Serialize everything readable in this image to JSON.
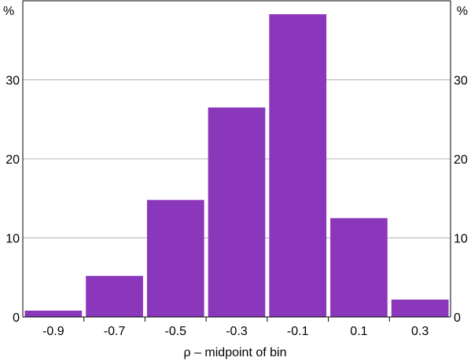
{
  "chart_data": {
    "type": "bar",
    "title": "",
    "xlabel": "ρ – midpoint of bin",
    "ylabel_left": "%",
    "ylabel_right": "%",
    "categories": [
      "-0.9",
      "-0.7",
      "-0.5",
      "-0.3",
      "-0.1",
      "0.1",
      "0.3"
    ],
    "values": [
      0.8,
      5.2,
      14.8,
      26.5,
      38.3,
      12.5,
      2.2
    ],
    "ylim": [
      0,
      40
    ],
    "yticks": [
      0,
      10,
      20,
      30
    ],
    "grid": true,
    "bar_color": "#8B37BC"
  }
}
